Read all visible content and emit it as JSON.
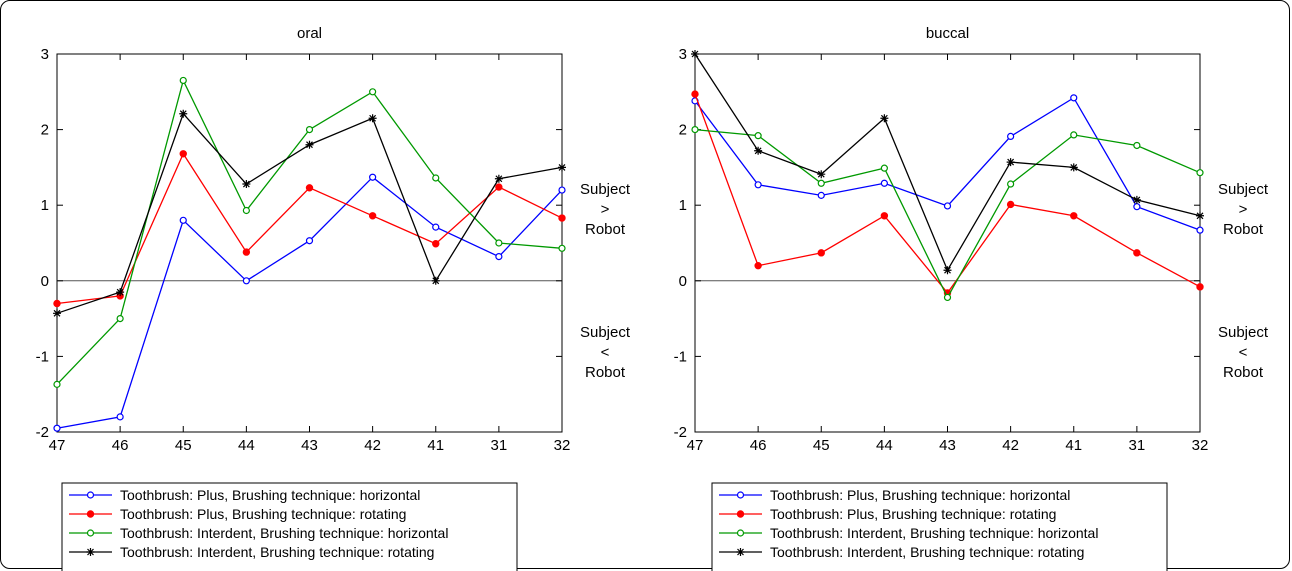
{
  "chart_data": [
    {
      "type": "line",
      "title": "oral",
      "categories": [
        "47",
        "46",
        "45",
        "44",
        "43",
        "42",
        "41",
        "31",
        "32"
      ],
      "ylim": [
        -2,
        3
      ],
      "yticks": [
        -2,
        -1,
        0,
        1,
        2,
        3
      ],
      "zero_line": true,
      "legend_position": "bottom",
      "side_labels": {
        "upper": [
          "Subject",
          ">",
          "Robot"
        ],
        "lower": [
          "Subject",
          "<",
          "Robot"
        ]
      },
      "series": [
        {
          "name": "Toothbrush: Plus, Brushing technique: horizontal",
          "color": "#0000ff",
          "marker": "open-circle",
          "values": [
            -1.95,
            -1.8,
            0.8,
            0.0,
            0.53,
            1.37,
            0.71,
            0.32,
            1.2
          ]
        },
        {
          "name": "Toothbrush: Plus, Brushing technique: rotating",
          "color": "#ff0000",
          "marker": "filled-circle",
          "values": [
            -0.3,
            -0.2,
            1.68,
            0.38,
            1.23,
            0.86,
            0.49,
            1.24,
            0.83
          ]
        },
        {
          "name": "Toothbrush: Interdent, Brushing technique: horizontal",
          "color": "#009900",
          "marker": "open-circle",
          "values": [
            -1.37,
            -0.5,
            2.65,
            0.93,
            2.0,
            2.5,
            1.36,
            0.5,
            0.43
          ]
        },
        {
          "name": "Toothbrush: Interdent, Brushing technique: rotating",
          "color": "#000000",
          "marker": "asterisk",
          "values": [
            -0.43,
            -0.15,
            2.21,
            1.28,
            1.8,
            2.15,
            0.0,
            1.35,
            1.5
          ]
        }
      ]
    },
    {
      "type": "line",
      "title": "buccal",
      "categories": [
        "47",
        "46",
        "45",
        "44",
        "43",
        "42",
        "41",
        "31",
        "32"
      ],
      "ylim": [
        -2,
        3
      ],
      "yticks": [
        -2,
        -1,
        0,
        1,
        2,
        3
      ],
      "zero_line": true,
      "legend_position": "bottom",
      "side_labels": {
        "upper": [
          "Subject",
          ">",
          "Robot"
        ],
        "lower": [
          "Subject",
          "<",
          "Robot"
        ]
      },
      "series": [
        {
          "name": "Toothbrush: Plus, Brushing technique: horizontal",
          "color": "#0000ff",
          "marker": "open-circle",
          "values": [
            2.38,
            1.27,
            1.13,
            1.29,
            0.99,
            1.91,
            2.42,
            0.98,
            0.67
          ]
        },
        {
          "name": "Toothbrush: Plus, Brushing technique: rotating",
          "color": "#ff0000",
          "marker": "filled-circle",
          "values": [
            2.47,
            0.2,
            0.37,
            0.86,
            -0.16,
            1.01,
            0.86,
            0.37,
            -0.08
          ]
        },
        {
          "name": "Toothbrush: Interdent, Brushing technique: horizontal",
          "color": "#009900",
          "marker": "open-circle",
          "values": [
            2.0,
            1.92,
            1.29,
            1.49,
            -0.22,
            1.28,
            1.93,
            1.79,
            1.43
          ]
        },
        {
          "name": "Toothbrush: Interdent, Brushing technique: rotating",
          "color": "#000000",
          "marker": "asterisk",
          "values": [
            3.0,
            1.72,
            1.41,
            2.15,
            0.14,
            1.57,
            1.5,
            1.07,
            0.86
          ]
        }
      ]
    }
  ]
}
